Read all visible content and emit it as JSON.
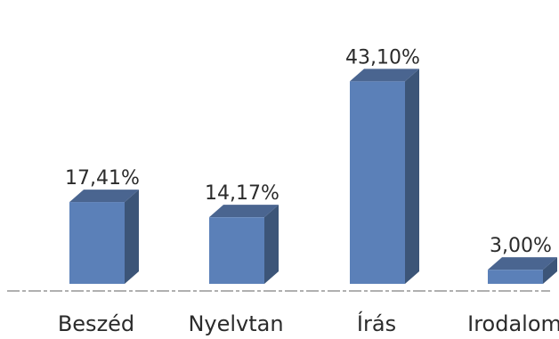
{
  "chart_data": {
    "type": "bar",
    "categories": [
      "Beszéd",
      "Nyelvtan",
      "Írás",
      "Irodalom"
    ],
    "values": [
      17.41,
      14.17,
      43.1,
      3.0
    ],
    "data_labels": [
      "17,41%",
      "14,17%",
      "43,10%",
      "3,00%"
    ],
    "title": "",
    "xlabel": "",
    "ylabel": "",
    "ylim": [
      0,
      45
    ],
    "grid": false,
    "legend": "none",
    "style": "3d-column",
    "colors": {
      "front": "#5b80b8",
      "side": "#3c5578",
      "top": "#4a6590",
      "baseline": "#b0b0b0"
    }
  }
}
